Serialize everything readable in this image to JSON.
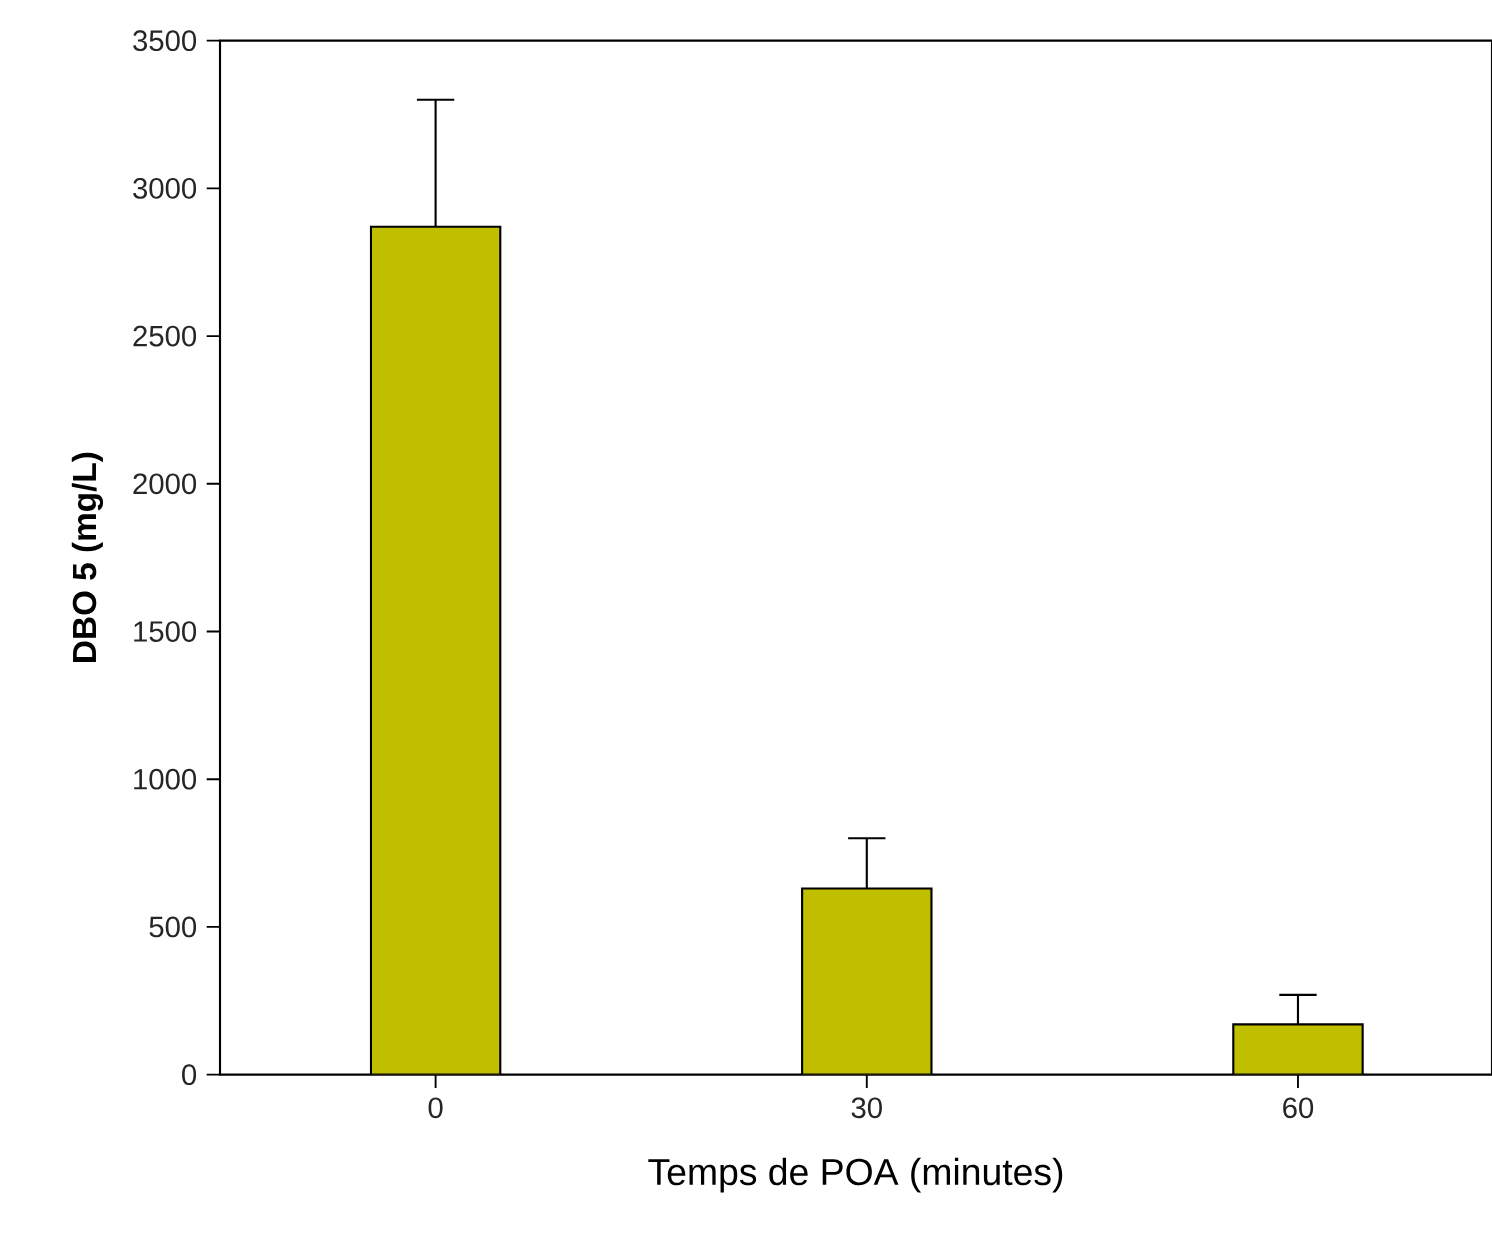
{
  "chart_data": {
    "type": "bar",
    "xlabel": "Temps de POA (minutes)",
    "ylabel": "DBO 5 (mg/L)",
    "categories": [
      "0",
      "30",
      "60"
    ],
    "values": [
      2870,
      630,
      170
    ],
    "errors": [
      [
        2870,
        3300
      ],
      [
        630,
        800
      ],
      [
        170,
        270
      ]
    ],
    "color": "#bfbf00",
    "ylim": [
      0,
      3500
    ],
    "yticks": [
      0,
      500,
      1000,
      1500,
      2000,
      2500,
      3000,
      3500
    ]
  }
}
